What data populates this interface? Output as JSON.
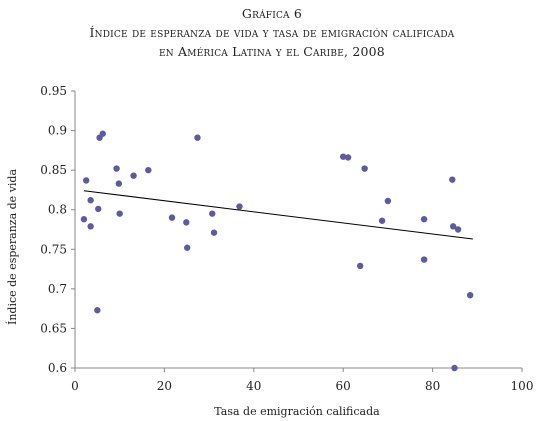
{
  "header": {
    "figure_label": "Gráfica 6",
    "title_line_1": "Índice de esperanza de vida y tasa de emigración calificada",
    "title_line_2": "en América Latina y el Caribe, 2008"
  },
  "chart_data": {
    "type": "scatter",
    "title": "Índice de esperanza de vida y tasa de emigración calificada en América Latina y el Caribe, 2008",
    "xlabel": "Tasa de emigración calificada",
    "ylabel": "Índice de esperanza de vida",
    "xlim": [
      0,
      100
    ],
    "ylim": [
      0.6,
      0.95
    ],
    "xticks": [
      0,
      20,
      40,
      60,
      80,
      100
    ],
    "yticks": [
      0.6,
      0.65,
      0.7,
      0.75,
      0.8,
      0.85,
      0.9,
      0.95
    ],
    "ytick_labels": [
      "0.6",
      "0.65",
      "0.7",
      "0.75",
      "0.8",
      "0.85",
      "0.9",
      "0.95"
    ],
    "grid": false,
    "legend": "none",
    "point_color": "#5b5b9e",
    "trendline_color": "#000000",
    "series": [
      {
        "points": [
          {
            "x": 2,
            "y": 0.788
          },
          {
            "x": 2.5,
            "y": 0.837
          },
          {
            "x": 3.5,
            "y": 0.812
          },
          {
            "x": 3.5,
            "y": 0.779
          },
          {
            "x": 5,
            "y": 0.673
          },
          {
            "x": 5.2,
            "y": 0.801
          },
          {
            "x": 5.5,
            "y": 0.891
          },
          {
            "x": 6.2,
            "y": 0.896
          },
          {
            "x": 9.3,
            "y": 0.852
          },
          {
            "x": 9.8,
            "y": 0.833
          },
          {
            "x": 10,
            "y": 0.795
          },
          {
            "x": 13.1,
            "y": 0.843
          },
          {
            "x": 16.4,
            "y": 0.85
          },
          {
            "x": 21.7,
            "y": 0.79
          },
          {
            "x": 24.9,
            "y": 0.784
          },
          {
            "x": 25.1,
            "y": 0.752
          },
          {
            "x": 27.4,
            "y": 0.891
          },
          {
            "x": 30.7,
            "y": 0.795
          },
          {
            "x": 31.1,
            "y": 0.771
          },
          {
            "x": 36.8,
            "y": 0.804
          },
          {
            "x": 60,
            "y": 0.867
          },
          {
            "x": 61.1,
            "y": 0.866
          },
          {
            "x": 63.8,
            "y": 0.729
          },
          {
            "x": 64.8,
            "y": 0.852
          },
          {
            "x": 68.7,
            "y": 0.786
          },
          {
            "x": 70,
            "y": 0.811
          },
          {
            "x": 78.1,
            "y": 0.788
          },
          {
            "x": 78.1,
            "y": 0.737
          },
          {
            "x": 84.4,
            "y": 0.838
          },
          {
            "x": 84.6,
            "y": 0.779
          },
          {
            "x": 84.9,
            "y": 0.6
          },
          {
            "x": 85.7,
            "y": 0.775
          },
          {
            "x": 88.4,
            "y": 0.692
          }
        ]
      }
    ],
    "trendline": {
      "x": [
        2,
        89
      ],
      "y": [
        0.824,
        0.763
      ]
    }
  }
}
